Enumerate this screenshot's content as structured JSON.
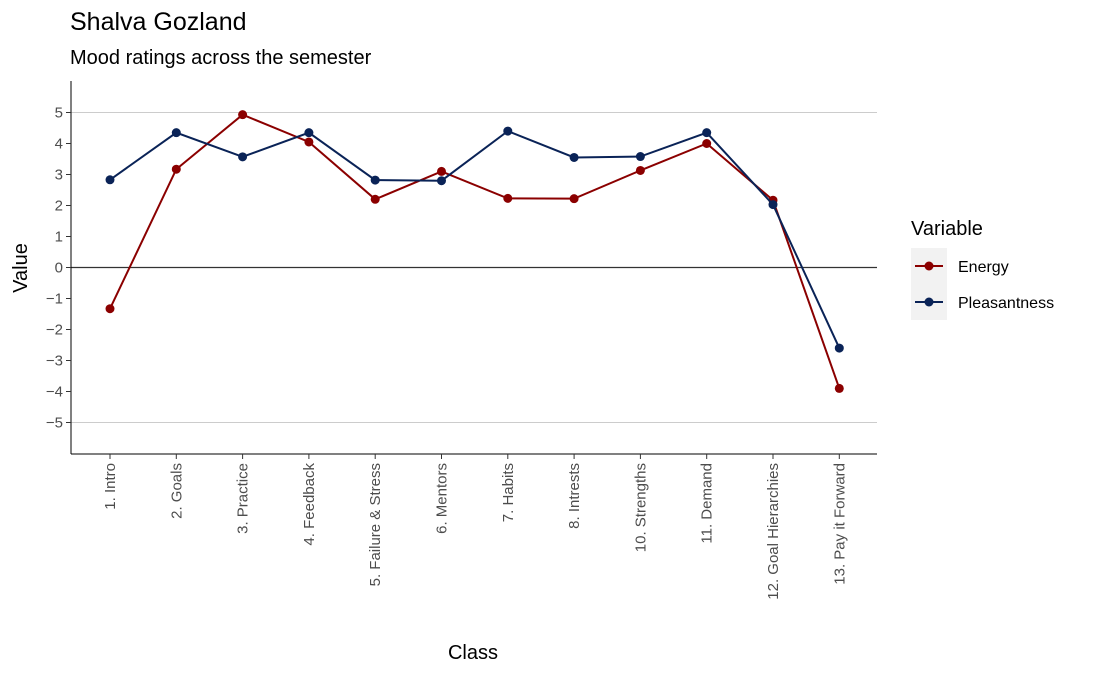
{
  "chart_data": {
    "type": "line",
    "title": "Shalva Gozland",
    "subtitle": "Mood ratings across the semester",
    "xlabel": "Class",
    "ylabel": "Value",
    "ylim": [
      -6,
      6
    ],
    "yticks": [
      -5,
      -4,
      -3,
      -2,
      -1,
      0,
      1,
      2,
      3,
      4,
      5
    ],
    "grid_lines_at": [
      -5,
      5
    ],
    "zero_line": true,
    "categories": [
      "1. Intro",
      "2. Goals",
      "3. Practice",
      "4. Feedback",
      "5. Failure & Stress",
      "6. Mentors",
      "7. Habits",
      "8. Intrests",
      "10. Strengths",
      "11. Demand",
      "12. Goal Hierarchies",
      "13. Pay it Forward"
    ],
    "legend": {
      "title": "Variable",
      "position": "right"
    },
    "series": [
      {
        "name": "Energy",
        "color": "#8b0000",
        "values": [
          -1.33,
          3.17,
          4.93,
          4.05,
          2.2,
          3.1,
          2.23,
          2.22,
          3.13,
          4.0,
          2.17,
          -3.9
        ]
      },
      {
        "name": "Pleasantness",
        "color": "#0a2357",
        "values": [
          2.83,
          4.35,
          3.57,
          4.35,
          2.82,
          2.8,
          4.4,
          3.55,
          3.58,
          4.35,
          2.03,
          -2.6
        ]
      }
    ]
  }
}
